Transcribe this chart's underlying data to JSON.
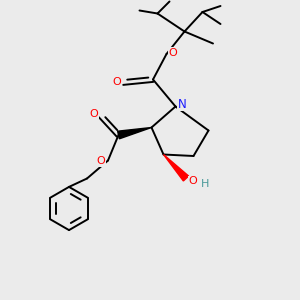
{
  "bg_color": "#ebebeb",
  "atom_colors": {
    "O": "#ff0000",
    "N": "#1a1aff",
    "C": "#000000",
    "H_teal": "#4a9999"
  },
  "bond_color": "#000000",
  "figsize": [
    3.0,
    3.0
  ],
  "dpi": 100,
  "lw": 1.4
}
